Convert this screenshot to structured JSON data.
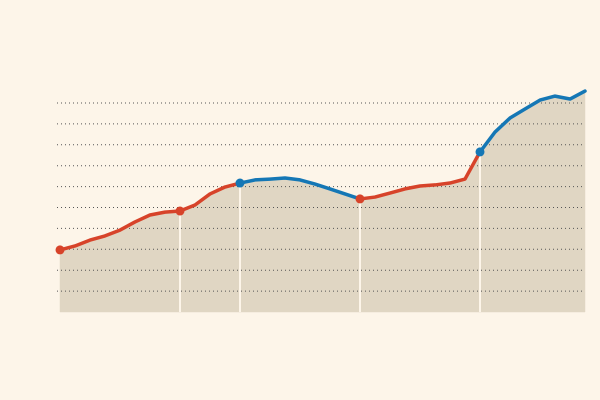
{
  "chart_data": {
    "type": "line",
    "xlim": [
      0,
      35
    ],
    "ylim": [
      0,
      10
    ],
    "yticks": [
      1,
      2,
      3,
      4,
      5,
      6,
      7,
      8,
      9,
      10
    ],
    "grid": true,
    "area_color": "#e0d6c3",
    "xlines": [
      8,
      12,
      20,
      28
    ],
    "series": [
      {
        "color": "#d7432a",
        "x": [
          0,
          1,
          2,
          3,
          4,
          5,
          6,
          7,
          8,
          9,
          10,
          11,
          12
        ],
        "values": [
          2.97,
          3.16,
          3.44,
          3.64,
          3.92,
          4.31,
          4.64,
          4.78,
          4.83,
          5.12,
          5.65,
          5.98,
          6.17
        ]
      },
      {
        "color": "#1577b5",
        "x": [
          12,
          13,
          14,
          15,
          16,
          17,
          18,
          19,
          20
        ],
        "values": [
          6.17,
          6.32,
          6.36,
          6.41,
          6.32,
          6.12,
          5.89,
          5.65,
          5.41
        ]
      },
      {
        "color": "#d7432a",
        "x": [
          20,
          21,
          22,
          23,
          24,
          25,
          26,
          27,
          28
        ],
        "values": [
          5.41,
          5.5,
          5.69,
          5.89,
          6.03,
          6.08,
          6.17,
          6.36,
          7.66
        ]
      },
      {
        "color": "#1577b5",
        "x": [
          28,
          29,
          30,
          31,
          32,
          33,
          34,
          35
        ],
        "values": [
          7.66,
          8.61,
          9.28,
          9.71,
          10.14,
          10.33,
          10.19,
          10.57
        ]
      }
    ]
  }
}
